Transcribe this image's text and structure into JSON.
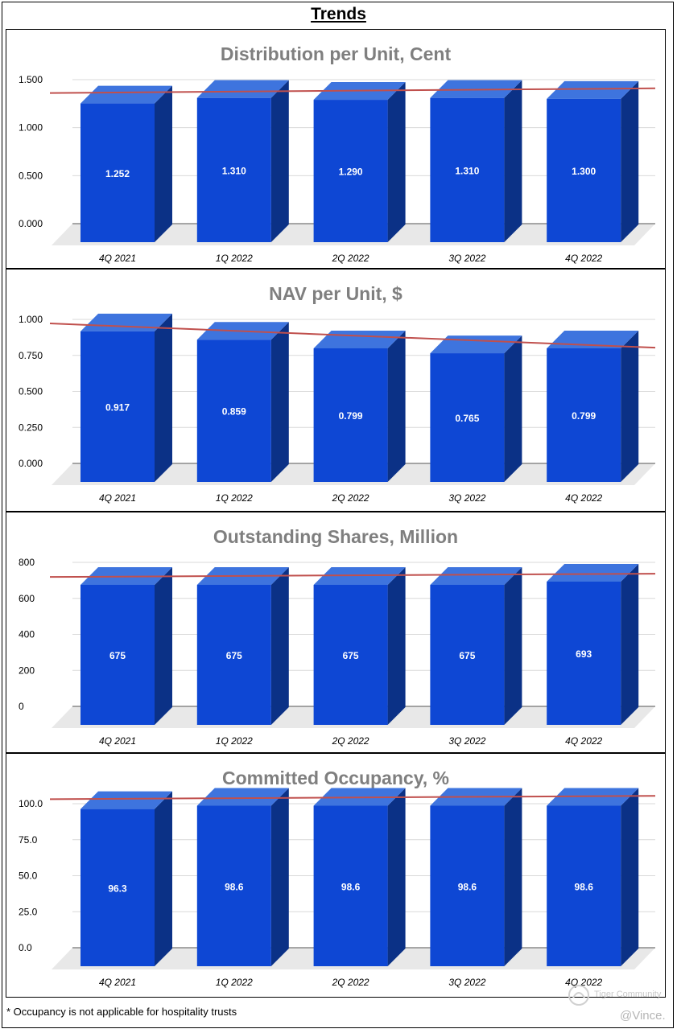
{
  "page": {
    "title": "Trends"
  },
  "footnote": "* Occupancy is not applicable for hospitality trusts",
  "watermark": {
    "brand": "Tiger Community",
    "user": "@Vince."
  },
  "colors": {
    "bar_front": "#0e47d4",
    "bar_top": "#3e74de",
    "bar_side": "#0b3186",
    "floor": "#e8e8e8",
    "trend": "#c0504d",
    "grid": "#d9d9d9",
    "title_gray": "#7f7f7f"
  },
  "chart_data": [
    {
      "type": "bar",
      "title": "Distribution per Unit, Cent",
      "categories": [
        "4Q 2021",
        "1Q 2022",
        "2Q 2022",
        "3Q 2022",
        "4Q 2022"
      ],
      "values": [
        1.252,
        1.31,
        1.29,
        1.31,
        1.3
      ],
      "value_labels": [
        "1.252",
        "1.310",
        "1.290",
        "1.310",
        "1.300"
      ],
      "yticks": [
        "0.000",
        "0.500",
        "1.000",
        "1.500"
      ],
      "ylim": [
        0,
        1.5
      ],
      "trendline": true,
      "xlabel": "",
      "ylabel": ""
    },
    {
      "type": "bar",
      "title": "NAV per Unit, $",
      "categories": [
        "4Q 2021",
        "1Q 2022",
        "2Q 2022",
        "3Q 2022",
        "4Q 2022"
      ],
      "values": [
        0.917,
        0.859,
        0.799,
        0.765,
        0.799
      ],
      "value_labels": [
        "0.917",
        "0.859",
        "0.799",
        "0.765",
        "0.799"
      ],
      "yticks": [
        "0.000",
        "0.250",
        "0.500",
        "0.750",
        "1.000"
      ],
      "ylim": [
        0,
        1.0
      ],
      "trendline": true,
      "xlabel": "",
      "ylabel": ""
    },
    {
      "type": "bar",
      "title": "Outstanding Shares, Million",
      "categories": [
        "4Q 2021",
        "1Q 2022",
        "2Q 2022",
        "3Q 2022",
        "4Q 2022"
      ],
      "values": [
        675,
        675,
        675,
        675,
        693
      ],
      "value_labels": [
        "675",
        "675",
        "675",
        "675",
        "693"
      ],
      "yticks": [
        "0",
        "200",
        "400",
        "600",
        "800"
      ],
      "ylim": [
        0,
        800
      ],
      "trendline": true,
      "xlabel": "",
      "ylabel": ""
    },
    {
      "type": "bar",
      "title": "Committed Occupancy, %",
      "categories": [
        "4Q 2021",
        "1Q 2022",
        "2Q 2022",
        "3Q 2022",
        "4Q 2022"
      ],
      "values": [
        96.3,
        98.6,
        98.6,
        98.6,
        98.6
      ],
      "value_labels": [
        "96.3",
        "98.6",
        "98.6",
        "98.6",
        "98.6"
      ],
      "yticks": [
        "0.0",
        "25.0",
        "50.0",
        "75.0",
        "100.0"
      ],
      "ylim": [
        0,
        100
      ],
      "trendline": true,
      "xlabel": "",
      "ylabel": ""
    }
  ]
}
